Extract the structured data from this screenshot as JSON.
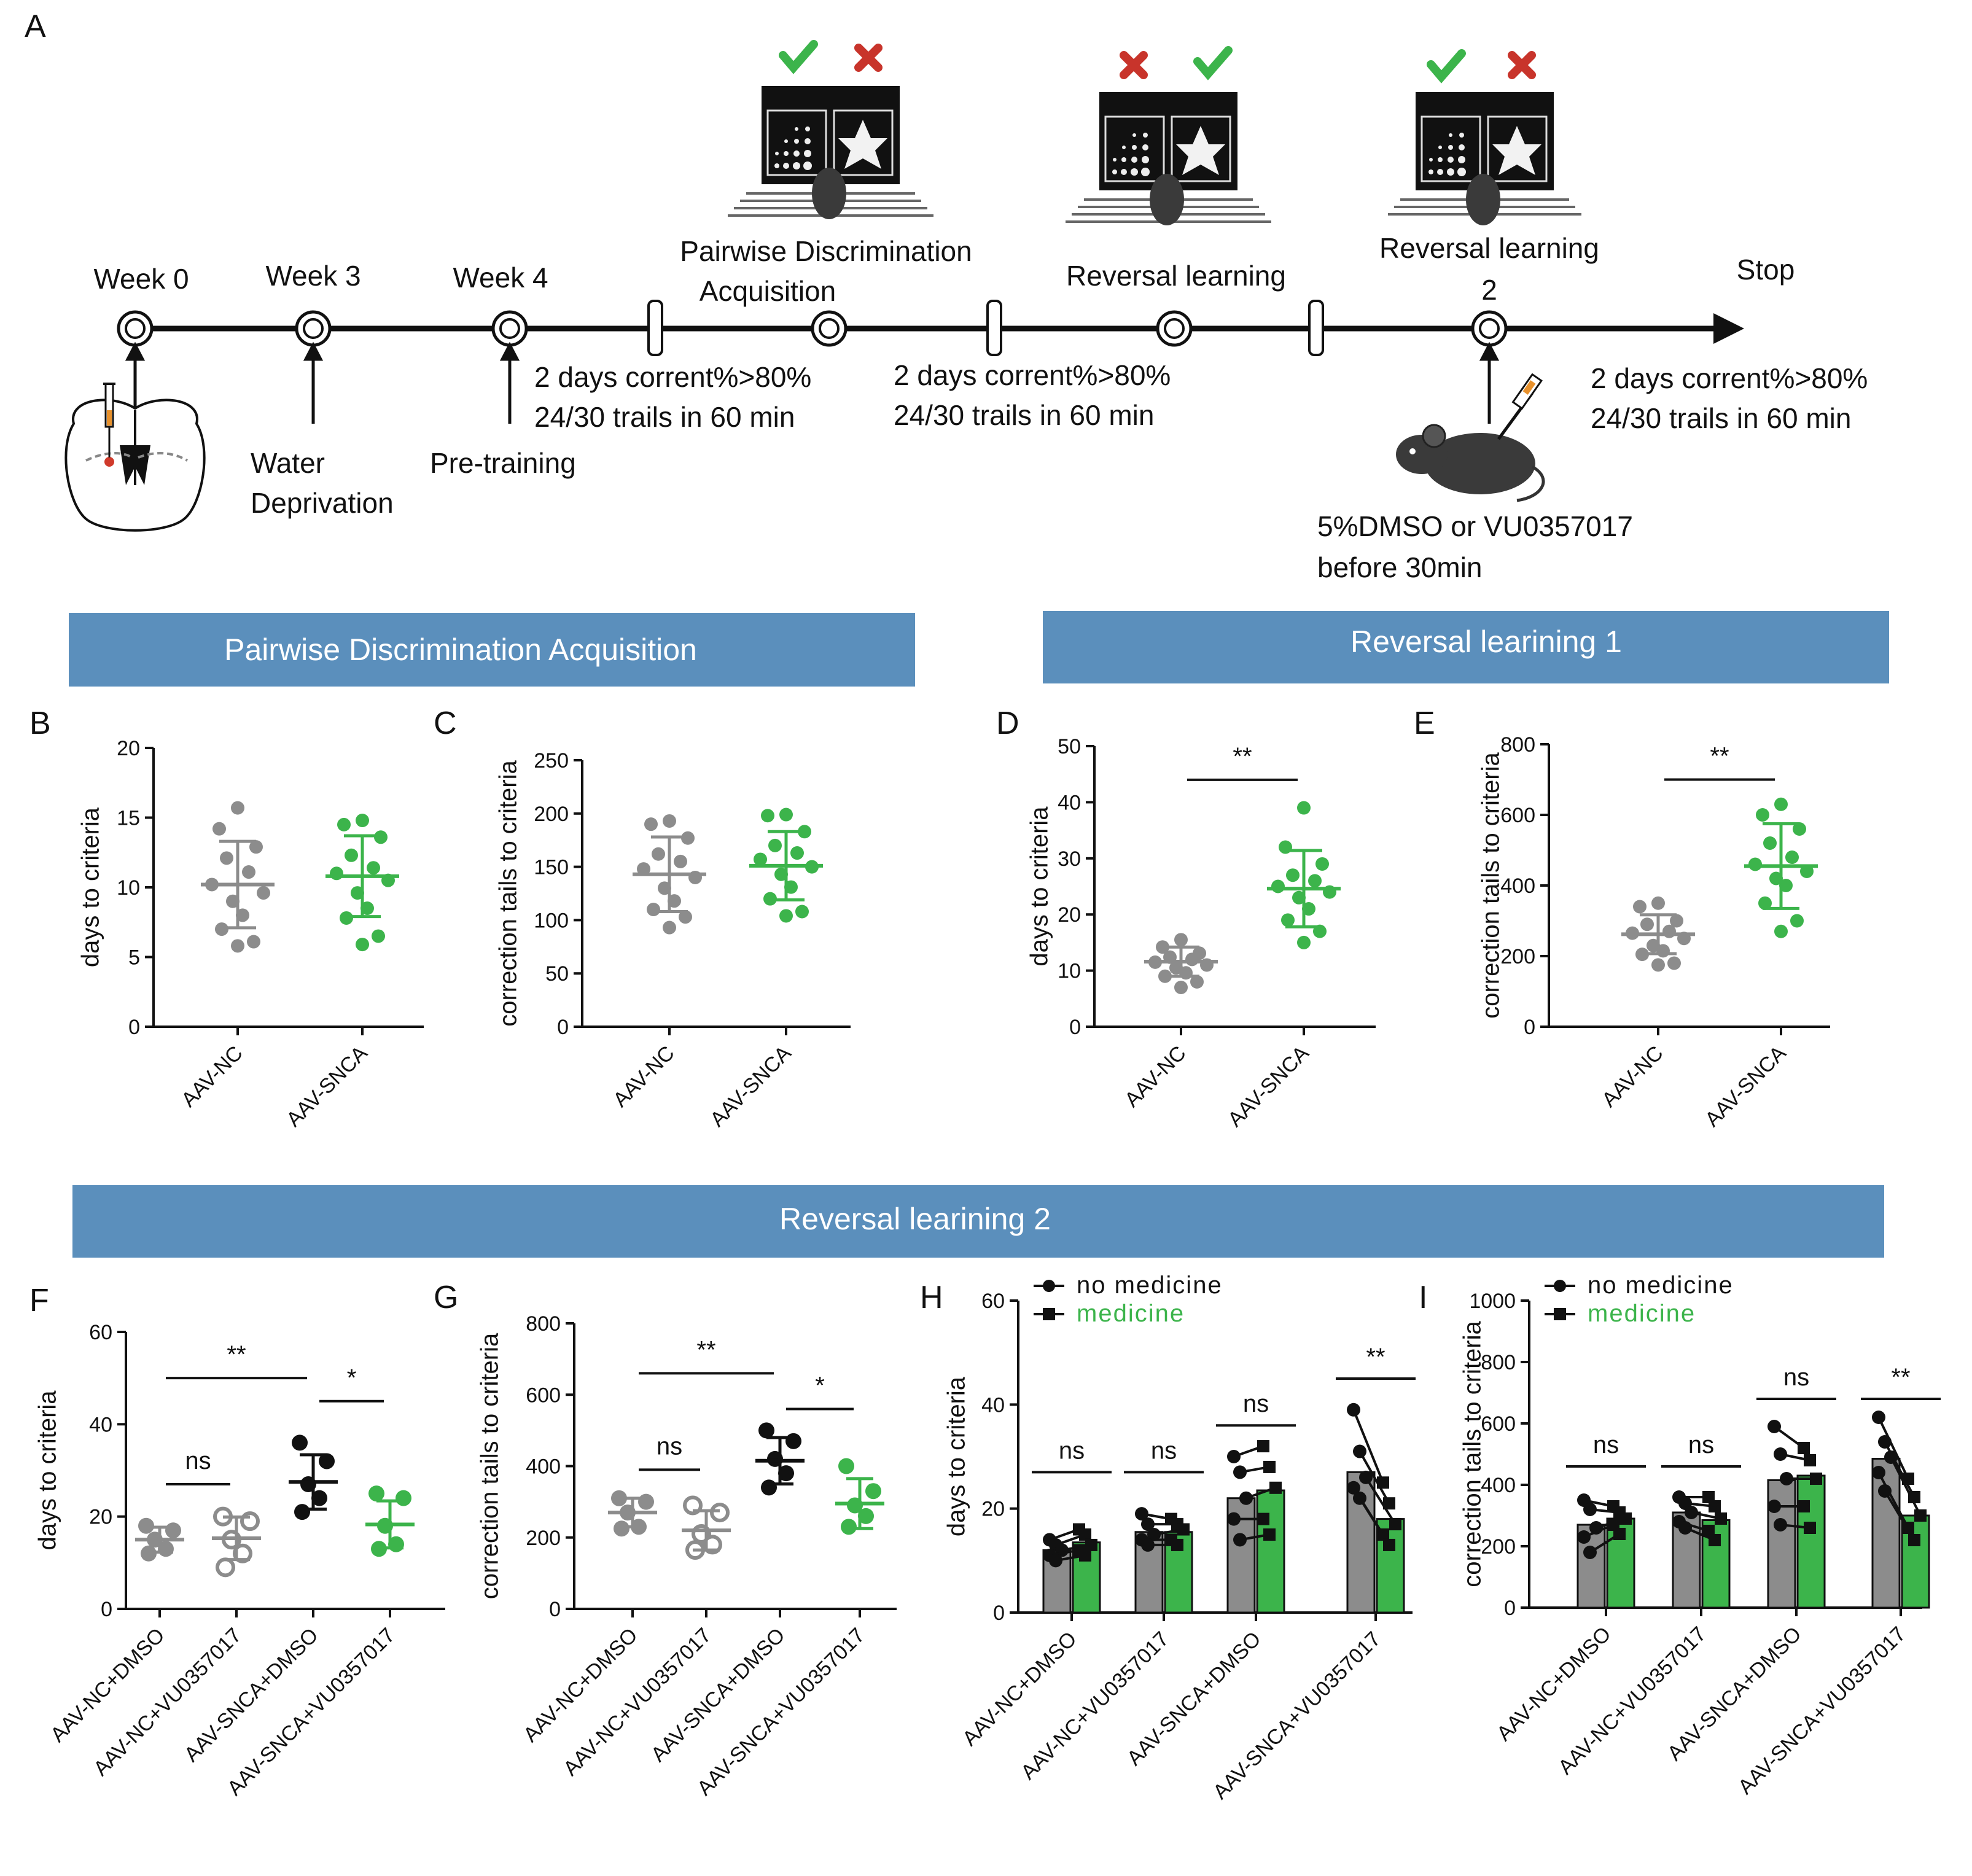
{
  "figure": {
    "panel_letters": [
      "A",
      "B",
      "C",
      "D",
      "E",
      "F",
      "G",
      "H",
      "I"
    ],
    "colors": {
      "gray": "#8c8c8c",
      "green": "#3cb44b",
      "black": "#111111",
      "banner": "#5b8fbc",
      "bar_gray": "#8c8c8c"
    }
  },
  "timeline": {
    "steps": [
      {
        "label": "Week 0"
      },
      {
        "label": "Week 3",
        "annotation": [
          "Water",
          "Deprivation"
        ]
      },
      {
        "label": "Week 4",
        "annotation": [
          "Pre-training"
        ]
      },
      {
        "label": "Pairwise Discrimination\nAcquisition"
      },
      {
        "label": "Reversal learning"
      },
      {
        "label": "Reversal learning\n2"
      },
      {
        "label": "Stop"
      }
    ],
    "criteria": [
      "2 days corrent%>80%",
      "24/30 trails in 60 min"
    ],
    "drug_note": [
      "5%DMSO or VU0357017",
      "before 30min"
    ]
  },
  "banners": {
    "pda": "Pairwise Discrimination Acquisition",
    "rl1": "Reversal learining 1",
    "rl2": "Reversal learining 2"
  },
  "chart_data": [
    {
      "panel": "B",
      "type": "scatter",
      "ylabel": "days to criteria",
      "ylim": [
        0,
        20
      ],
      "yticks": [
        0,
        5,
        10,
        15,
        20
      ],
      "categories": [
        "AAV-NC",
        "AAV-SNCA"
      ],
      "series": [
        {
          "name": "AAV-NC",
          "color": "gray",
          "points": [
            15.7,
            14.2,
            12.9,
            12.1,
            11.1,
            10.2,
            9.6,
            9.0,
            8.0,
            7.0,
            6.1,
            5.8
          ],
          "mean": 10.2,
          "sd": 3.1
        },
        {
          "name": "AAV-SNCA",
          "color": "green",
          "points": [
            14.8,
            14.5,
            13.6,
            12.3,
            11.4,
            11.0,
            10.5,
            9.6,
            8.5,
            7.8,
            6.5,
            5.9
          ],
          "mean": 10.8,
          "sd": 2.9
        }
      ]
    },
    {
      "panel": "C",
      "type": "scatter",
      "ylabel": "correction tails to criteria",
      "ylim": [
        0,
        250
      ],
      "yticks": [
        0,
        50,
        100,
        150,
        200,
        250
      ],
      "categories": [
        "AAV-NC",
        "AAV-SNCA"
      ],
      "series": [
        {
          "name": "AAV-NC",
          "color": "gray",
          "points": [
            193,
            190,
            177,
            162,
            155,
            148,
            140,
            130,
            118,
            110,
            103,
            93
          ],
          "mean": 143,
          "sd": 35
        },
        {
          "name": "AAV-SNCA",
          "color": "green",
          "points": [
            199,
            198,
            183,
            170,
            163,
            157,
            150,
            143,
            131,
            120,
            108,
            104
          ],
          "mean": 151,
          "sd": 32
        }
      ]
    },
    {
      "panel": "D",
      "type": "scatter",
      "ylabel": "days to criteria",
      "ylim": [
        0,
        50
      ],
      "yticks": [
        0,
        10,
        20,
        30,
        40,
        50
      ],
      "categories": [
        "AAV-NC",
        "AAV-SNCA"
      ],
      "significance": [
        {
          "from": 0,
          "to": 1,
          "label": "**",
          "y": 44
        }
      ],
      "series": [
        {
          "name": "AAV-NC",
          "color": "gray",
          "points": [
            15.5,
            14.2,
            13.1,
            12.4,
            12.0,
            11.5,
            11.0,
            10.5,
            9.6,
            9.0,
            8.0,
            7.0
          ],
          "mean": 11.6,
          "sd": 2.6
        },
        {
          "name": "AAV-SNCA",
          "color": "green",
          "points": [
            39,
            32,
            29,
            27,
            26,
            25,
            24,
            23,
            21,
            19,
            17,
            15
          ],
          "mean": 24.6,
          "sd": 6.8
        }
      ]
    },
    {
      "panel": "E",
      "type": "scatter",
      "ylabel": "correction tails to criteria",
      "ylim": [
        0,
        800
      ],
      "yticks": [
        0,
        200,
        400,
        600,
        800
      ],
      "categories": [
        "AAV-NC",
        "AAV-SNCA"
      ],
      "significance": [
        {
          "from": 0,
          "to": 1,
          "label": "**",
          "y": 700
        }
      ],
      "series": [
        {
          "name": "AAV-NC",
          "color": "gray",
          "points": [
            350,
            340,
            300,
            290,
            270,
            265,
            250,
            230,
            215,
            205,
            180,
            175
          ],
          "mean": 262,
          "sd": 55
        },
        {
          "name": "AAV-SNCA",
          "color": "green",
          "points": [
            630,
            600,
            560,
            520,
            480,
            460,
            440,
            420,
            400,
            350,
            300,
            270
          ],
          "mean": 455,
          "sd": 120
        }
      ]
    },
    {
      "panel": "F",
      "type": "scatter",
      "ylabel": "days to criteria",
      "ylim": [
        0,
        60
      ],
      "yticks": [
        0,
        20,
        40,
        60
      ],
      "categories": [
        "AAV-NC+DMSO",
        "AAV-NC+VU0357017",
        "AAV-SNCA+DMSO",
        "AAV-SNCA+VU0357017"
      ],
      "significance": [
        {
          "from": 0,
          "to": 2,
          "label": "**",
          "y": 50
        },
        {
          "from": 2,
          "to": 3,
          "label": "*",
          "y": 45
        },
        {
          "from": 0,
          "to": 1,
          "label": "ns",
          "y": 27
        }
      ],
      "series": [
        {
          "name": "AAV-NC+DMSO",
          "color": "gray",
          "points": [
            18,
            17,
            15,
            13,
            12
          ],
          "mean": 15,
          "sd": 2.7
        },
        {
          "name": "AAV-NC+VU0357017",
          "color": "gray_open",
          "points": [
            20,
            19,
            15,
            12,
            9
          ],
          "mean": 15.3,
          "sd": 4.6
        },
        {
          "name": "AAV-SNCA+DMSO",
          "color": "black",
          "points": [
            36,
            32,
            27,
            24,
            21
          ],
          "mean": 27.5,
          "sd": 5.9
        },
        {
          "name": "AAV-SNCA+VU0357017",
          "color": "green",
          "points": [
            25,
            24,
            18,
            14,
            13
          ],
          "mean": 18.3,
          "sd": 5.1
        }
      ]
    },
    {
      "panel": "G",
      "type": "scatter",
      "ylabel": "correction tails to criteria",
      "ylim": [
        0,
        800
      ],
      "yticks": [
        0,
        200,
        400,
        600,
        800
      ],
      "categories": [
        "AAV-NC+DMSO",
        "AAV-NC+VU0357017",
        "AAV-SNCA+DMSO",
        "AAV-SNCA+VU0357017"
      ],
      "significance": [
        {
          "from": 0,
          "to": 2,
          "label": "**",
          "y": 660
        },
        {
          "from": 2,
          "to": 3,
          "label": "*",
          "y": 560
        },
        {
          "from": 0,
          "to": 1,
          "label": "ns",
          "y": 390
        }
      ],
      "series": [
        {
          "name": "AAV-NC+DMSO",
          "color": "gray",
          "points": [
            310,
            300,
            270,
            230,
            225
          ],
          "mean": 270,
          "sd": 40
        },
        {
          "name": "AAV-NC+VU0357017",
          "color": "gray_open",
          "points": [
            290,
            270,
            210,
            180,
            165
          ],
          "mean": 220,
          "sd": 55
        },
        {
          "name": "AAV-SNCA+DMSO",
          "color": "black",
          "points": [
            500,
            470,
            420,
            380,
            340
          ],
          "mean": 415,
          "sd": 65
        },
        {
          "name": "AAV-SNCA+VU0357017",
          "color": "green",
          "points": [
            400,
            330,
            290,
            260,
            230
          ],
          "mean": 295,
          "sd": 70
        }
      ]
    },
    {
      "panel": "H",
      "type": "bar",
      "ylabel": "days to criteria",
      "ylim": [
        0,
        60
      ],
      "yticks": [
        0,
        20,
        40,
        60
      ],
      "categories": [
        "AAV-NC+DMSO",
        "AAV-NC+VU0357017",
        "AAV-SNCA+DMSO",
        "AAV-SNCA+VU0357017"
      ],
      "legend": [
        {
          "label": "no medicine",
          "color": "black"
        },
        {
          "label": "medicine",
          "color": "green"
        }
      ],
      "significance": [
        {
          "group": 0,
          "label": "ns",
          "y": 27
        },
        {
          "group": 1,
          "label": "ns",
          "y": 27
        },
        {
          "group": 2,
          "label": "ns",
          "y": 36
        },
        {
          "group": 3,
          "label": "**",
          "y": 45
        }
      ],
      "series": [
        {
          "name": "no medicine",
          "values": [
            12,
            15.5,
            22,
            27
          ],
          "points": [
            [
              14,
              13,
              12,
              11,
              10
            ],
            [
              19,
              17,
              15,
              14,
              13
            ],
            [
              30,
              27,
              22,
              18,
              14
            ],
            [
              39,
              31,
              26,
              24,
              22
            ]
          ]
        },
        {
          "name": "medicine",
          "values": [
            13.5,
            15.5,
            23.5,
            18
          ],
          "points": [
            [
              16,
              15,
              13,
              12,
              11
            ],
            [
              18,
              17,
              16,
              14,
              13
            ],
            [
              32,
              28,
              24,
              18,
              15
            ],
            [
              25,
              21,
              17,
              15,
              13
            ]
          ]
        }
      ]
    },
    {
      "panel": "I",
      "type": "bar",
      "ylabel": "correction tails to criteria",
      "ylim": [
        0,
        1000
      ],
      "yticks": [
        0,
        200,
        400,
        600,
        800,
        1000
      ],
      "categories": [
        "AAV-NC+DMSO",
        "AAV-NC+VU0357017",
        "AAV-SNCA+DMSO",
        "AAV-SNCA+VU0357017"
      ],
      "legend": [
        {
          "label": "no medicine",
          "color": "black"
        },
        {
          "label": "medicine",
          "color": "green"
        }
      ],
      "significance": [
        {
          "group": 0,
          "label": "ns",
          "y": 460
        },
        {
          "group": 1,
          "label": "ns",
          "y": 460
        },
        {
          "group": 2,
          "label": "ns",
          "y": 680
        },
        {
          "group": 3,
          "label": "**",
          "y": 680
        }
      ],
      "series": [
        {
          "name": "no medicine",
          "values": [
            270,
            310,
            415,
            485
          ],
          "points": [
            [
              350,
              320,
              260,
              230,
              180
            ],
            [
              360,
              340,
              310,
              280,
              260
            ],
            [
              590,
              500,
              420,
              330,
              270
            ],
            [
              620,
              540,
              490,
              440,
              380
            ]
          ]
        },
        {
          "name": "medicine",
          "values": [
            290,
            285,
            430,
            300
          ],
          "points": [
            [
              330,
              310,
              290,
              270,
              240
            ],
            [
              360,
              330,
              290,
              250,
              220
            ],
            [
              520,
              480,
              420,
              330,
              260
            ],
            [
              420,
              360,
              300,
              260,
              220
            ]
          ]
        }
      ]
    }
  ]
}
